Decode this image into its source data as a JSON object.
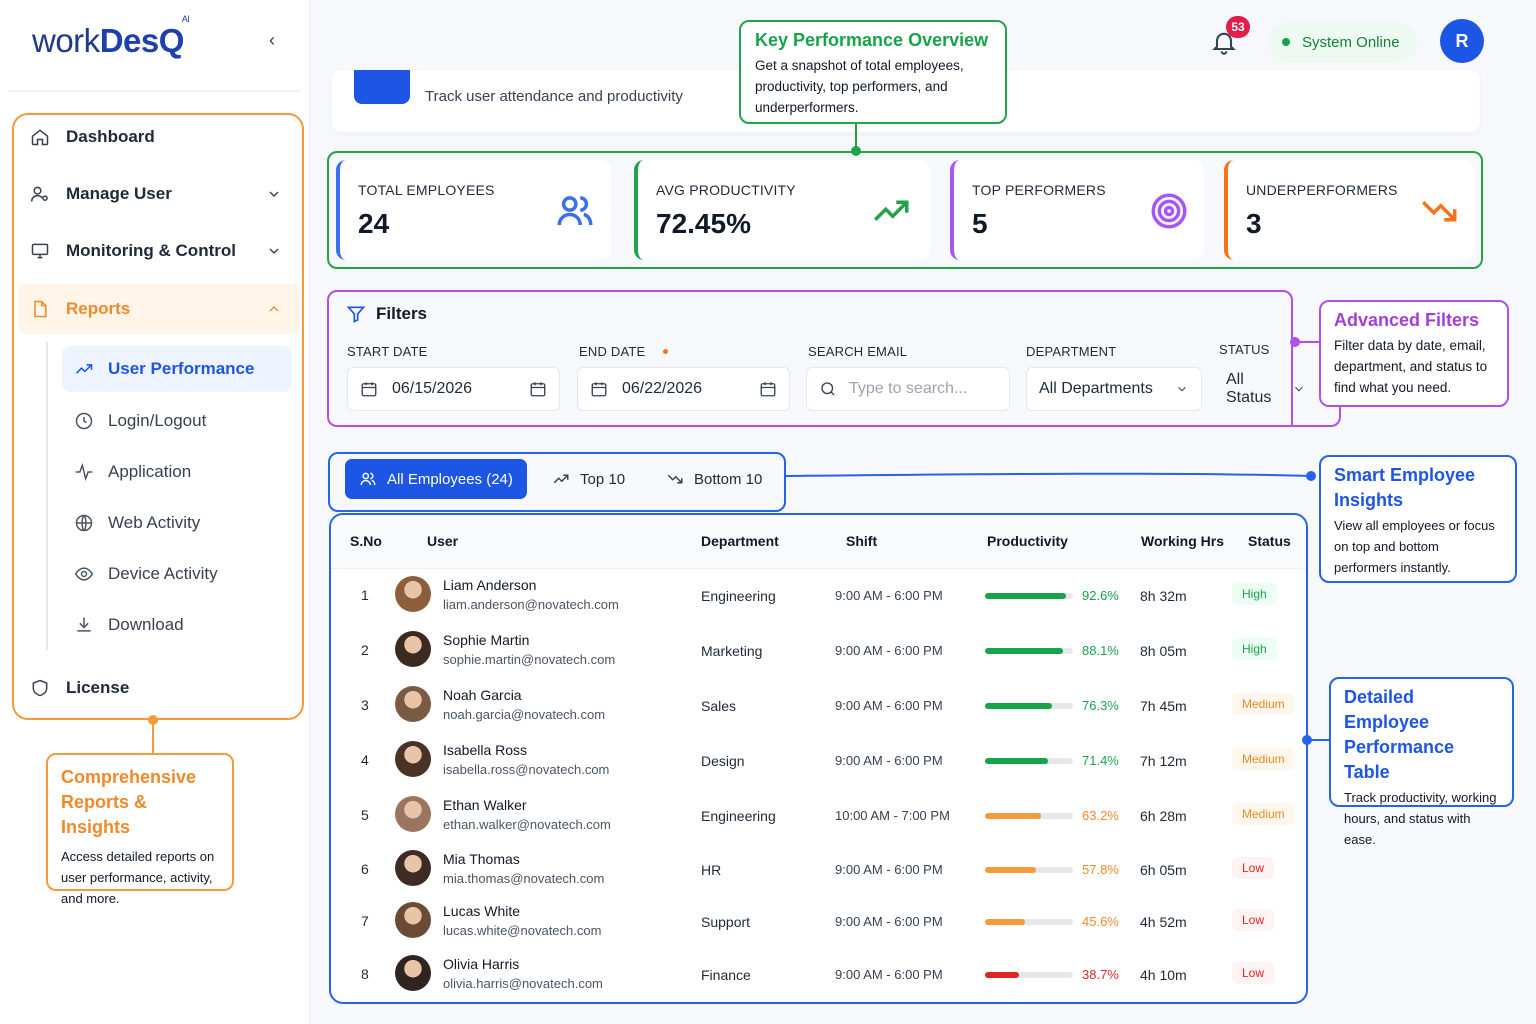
{
  "brand": {
    "name_a": "work",
    "name_b": "DesQ",
    "sup": "AI"
  },
  "sidebar": {
    "items": [
      {
        "label": "Dashboard"
      },
      {
        "label": "Manage User"
      },
      {
        "label": "Monitoring & Control"
      },
      {
        "label": "Reports"
      },
      {
        "label": "License"
      }
    ],
    "sub_items": [
      {
        "label": "User Performance"
      },
      {
        "label": "Login/Logout"
      },
      {
        "label": "Application"
      },
      {
        "label": "Web Activity"
      },
      {
        "label": "Device Activity"
      },
      {
        "label": "Download"
      }
    ]
  },
  "header": {
    "subtitle": "Track user attendance and productivity",
    "notification_count": "53",
    "status": "System Online",
    "user_initial": "R"
  },
  "annotations": {
    "kpi": {
      "title": "Key Performance Overview",
      "desc": "Get a snapshot of total employees, productivity, top performers, and underperformers."
    },
    "filters": {
      "title": "Advanced Filters",
      "desc": "Filter data by date, email, department, and status to find what you need."
    },
    "insights": {
      "title": "Smart Employee Insights",
      "desc": "View all employees or focus on top and bottom performers instantly."
    },
    "table": {
      "title": "Detailed Employee Performance Table",
      "desc": "Track productivity, working hours, and status with ease."
    },
    "reports": {
      "title": "Comprehensive Reports & Insights",
      "desc": "Access detailed reports on user performance, activity, and more."
    }
  },
  "kpis": [
    {
      "label": "TOTAL EMPLOYEES",
      "value": "24",
      "color": "#3b6ff0"
    },
    {
      "label": "AVG PRODUCTIVITY",
      "value": "72.45%",
      "color": "#22a34a"
    },
    {
      "label": "TOP PERFORMERS",
      "value": "5",
      "color": "#a855f7"
    },
    {
      "label": "UNDERPERFORMERS",
      "value": "3",
      "color": "#f97316"
    }
  ],
  "filters": {
    "title": "Filters",
    "start_label": "START DATE",
    "start_value": "06/15/2026",
    "end_label": "END DATE",
    "end_value": "06/22/2026",
    "email_label": "SEARCH EMAIL",
    "email_placeholder": "Type to search...",
    "dept_label": "DEPARTMENT",
    "dept_value": "All Departments",
    "status_label": "STATUS",
    "status_value": "All Status"
  },
  "tabs": [
    {
      "label": "All Employees (24)"
    },
    {
      "label": "Top 10"
    },
    {
      "label": "Bottom 10"
    }
  ],
  "table": {
    "headers": [
      "S.No",
      "User",
      "Department",
      "Shift",
      "Productivity",
      "Working Hrs",
      "Status"
    ],
    "rows": [
      {
        "sno": "1",
        "name": "Liam Anderson",
        "email": "liam.anderson@novatech.com",
        "dept": "Engineering",
        "shift": "9:00 AM - 6:00 PM",
        "prod": "92.6%",
        "pct": 92.6,
        "hrs": "8h 32m",
        "status": "High"
      },
      {
        "sno": "2",
        "name": "Sophie Martin",
        "email": "sophie.martin@novatech.com",
        "dept": "Marketing",
        "shift": "9:00 AM - 6:00 PM",
        "prod": "88.1%",
        "pct": 88.1,
        "hrs": "8h 05m",
        "status": "High"
      },
      {
        "sno": "3",
        "name": "Noah Garcia",
        "email": "noah.garcia@novatech.com",
        "dept": "Sales",
        "shift": "9:00 AM - 6:00 PM",
        "prod": "76.3%",
        "pct": 76.3,
        "hrs": "7h 45m",
        "status": "Medium"
      },
      {
        "sno": "4",
        "name": "Isabella Ross",
        "email": "isabella.ross@novatech.com",
        "dept": "Design",
        "shift": "9:00 AM - 6:00 PM",
        "prod": "71.4%",
        "pct": 71.4,
        "hrs": "7h 12m",
        "status": "Medium"
      },
      {
        "sno": "5",
        "name": "Ethan Walker",
        "email": "ethan.walker@novatech.com",
        "dept": "Engineering",
        "shift": "10:00 AM - 7:00 PM",
        "prod": "63.2%",
        "pct": 63.2,
        "hrs": "6h 28m",
        "status": "Medium"
      },
      {
        "sno": "6",
        "name": "Mia Thomas",
        "email": "mia.thomas@novatech.com",
        "dept": "HR",
        "shift": "9:00 AM - 6:00 PM",
        "prod": "57.8%",
        "pct": 57.8,
        "hrs": "6h 05m",
        "status": "Low"
      },
      {
        "sno": "7",
        "name": "Lucas White",
        "email": "lucas.white@novatech.com",
        "dept": "Support",
        "shift": "9:00 AM - 6:00 PM",
        "prod": "45.6%",
        "pct": 45.6,
        "hrs": "4h 52m",
        "status": "Low"
      },
      {
        "sno": "8",
        "name": "Olivia Harris",
        "email": "olivia.harris@novatech.com",
        "dept": "Finance",
        "shift": "9:00 AM - 6:00 PM",
        "prod": "38.7%",
        "pct": 38.7,
        "hrs": "4h 10m",
        "status": "Low"
      }
    ]
  },
  "colors": {
    "accent": "#2563eb",
    "high": "#16a34a",
    "medium": "#f59e0b",
    "low": "#dc2626"
  }
}
